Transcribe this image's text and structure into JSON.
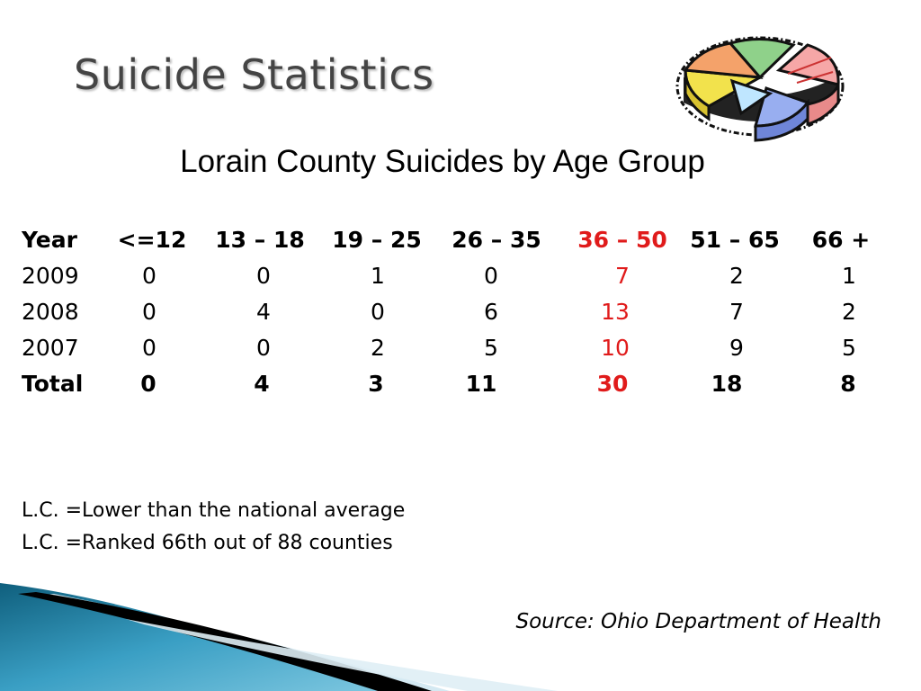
{
  "slide": {
    "title": "Suicide Statistics",
    "subtitle": "Lorain County Suicides by Age Group",
    "clipart_icon": "pie-chart-icon"
  },
  "table": {
    "columns": [
      "Year",
      "<=12",
      "13 – 18",
      "19 – 25",
      "26 – 35",
      "36 – 50",
      "51 – 65",
      "66 +"
    ],
    "highlight_column": "36 – 50",
    "highlight_color": "#e01b1b",
    "rows": [
      {
        "label": "2009",
        "values": [
          "0",
          "0",
          "1",
          "0",
          "7",
          "2",
          "1"
        ]
      },
      {
        "label": "2008",
        "values": [
          "0",
          "4",
          "0",
          "6",
          "13",
          "7",
          "2"
        ]
      },
      {
        "label": "2007",
        "values": [
          "0",
          "0",
          "2",
          "5",
          "10",
          "9",
          "5"
        ]
      }
    ],
    "total": {
      "label": "Total",
      "values": [
        "0",
        "4",
        "3",
        "11",
        "30",
        "18",
        "8"
      ]
    }
  },
  "notes": [
    "L.C. =Lower than the national average",
    "L.C. =Ranked 66th out of 88 counties"
  ],
  "source": "Source: Ohio Department of Health"
}
